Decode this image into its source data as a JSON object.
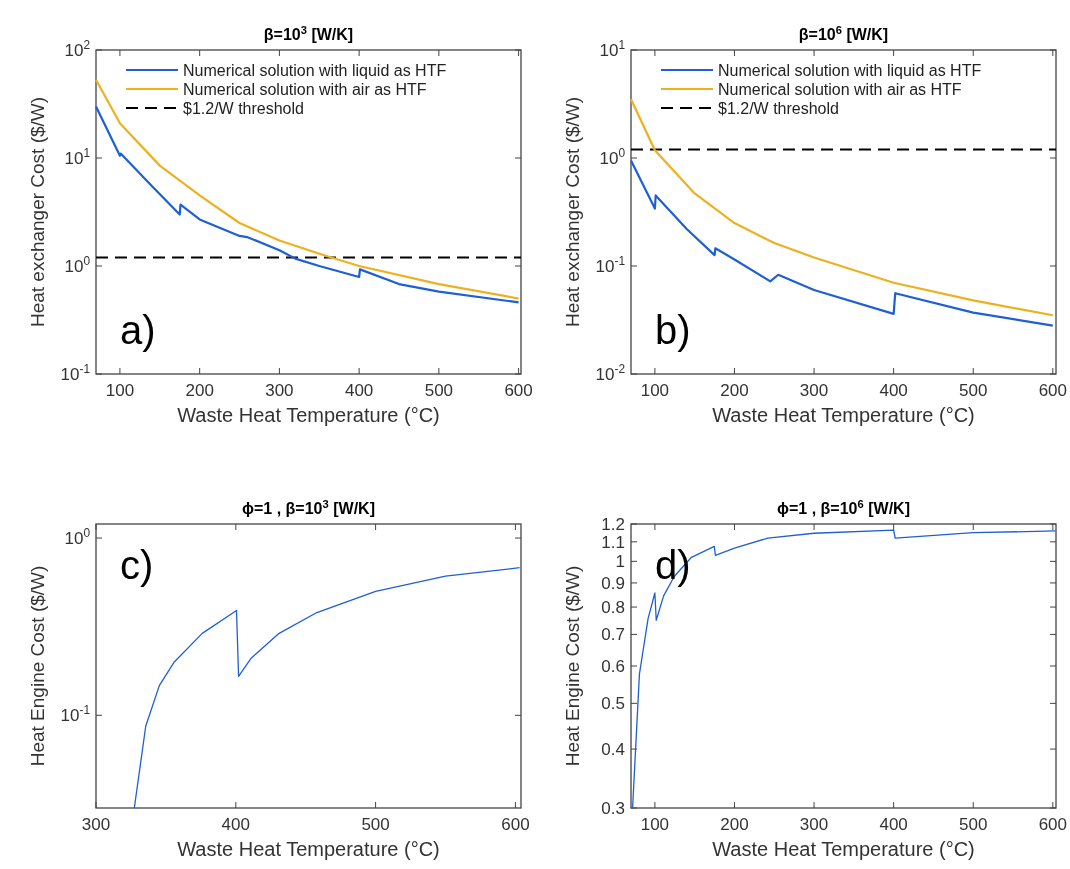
{
  "chart_data": [
    {
      "type": "line",
      "title": "β=10$^{3}$ [W/K]",
      "xlabel": "Waste Heat Temperature (°C)",
      "ylabel": "Heat exchanger Cost ($/W)",
      "annotations": [
        "a)"
      ],
      "log": "y",
      "legend": "top",
      "line_style": "solid",
      "xlim": [
        70,
        603
      ],
      "xticks": [
        100,
        200,
        300,
        400,
        500,
        600
      ],
      "ylim": [
        0.1,
        100
      ],
      "yticks": [
        {
          "value": 0.1,
          "label": "10$^{-1}$"
        },
        {
          "value": 1,
          "label": "10$^{0}$"
        },
        {
          "value": 10,
          "label": "10$^{1}$"
        },
        {
          "value": 100,
          "label": "10$^{2}$"
        }
      ],
      "ref_lines": [
        {
          "axis": "y",
          "value": 1.2,
          "label": "$1.2/W threshold",
          "color": "#000000",
          "line_style": "dashed"
        }
      ],
      "series": [
        {
          "name": "Numerical solution with liquid as HTF",
          "color": "#1f5fd4",
          "x": [
            70,
            100,
            101,
            140,
            175,
            176,
            200,
            250,
            260,
            300,
            320,
            350,
            400,
            401,
            450,
            500,
            600
          ],
          "values": [
            30,
            10.5,
            11,
            5.5,
            3.0,
            3.7,
            2.7,
            1.9,
            1.85,
            1.4,
            1.17,
            1.0,
            0.79,
            0.93,
            0.68,
            0.58,
            0.46
          ]
        },
        {
          "name": "Numerical solution with air as HTF",
          "color": "#edb120",
          "x": [
            70,
            100,
            150,
            200,
            250,
            300,
            360,
            400,
            500,
            600
          ],
          "values": [
            53,
            21,
            8.5,
            4.5,
            2.5,
            1.72,
            1.23,
            1.0,
            0.68,
            0.5
          ]
        }
      ]
    },
    {
      "type": "line",
      "title": "β=10$^{6}$ [W/K]",
      "xlabel": "Waste Heat Temperature (°C)",
      "ylabel": "Heat exchanger Cost ($/W)",
      "annotations": [
        "b)"
      ],
      "log": "y",
      "legend": "top",
      "line_style": "solid",
      "xlim": [
        70,
        604
      ],
      "xticks": [
        100,
        200,
        300,
        400,
        500,
        600
      ],
      "ylim": [
        0.01,
        10
      ],
      "yticks": [
        {
          "value": 0.01,
          "label": "10$^{-2}$"
        },
        {
          "value": 0.1,
          "label": "10$^{-1}$"
        },
        {
          "value": 1,
          "label": "10$^{0}$"
        },
        {
          "value": 10,
          "label": "10$^{1}$"
        }
      ],
      "ref_lines": [
        {
          "axis": "y",
          "value": 1.2,
          "label": "$1.2/W threshold",
          "color": "#000000",
          "line_style": "dashed"
        }
      ],
      "series": [
        {
          "name": "Numerical solution with liquid as HTF",
          "color": "#1f5fd4",
          "x": [
            70,
            100,
            101,
            140,
            175,
            176,
            200,
            245,
            255,
            300,
            400,
            402,
            500,
            600
          ],
          "values": [
            0.95,
            0.34,
            0.45,
            0.22,
            0.126,
            0.146,
            0.115,
            0.072,
            0.083,
            0.06,
            0.036,
            0.056,
            0.037,
            0.028
          ]
        },
        {
          "name": "Numerical solution with air as HTF",
          "color": "#edb120",
          "x": [
            70,
            100,
            150,
            200,
            250,
            300,
            400,
            500,
            600
          ],
          "values": [
            3.5,
            1.18,
            0.47,
            0.25,
            0.163,
            0.12,
            0.07,
            0.048,
            0.035
          ]
        }
      ]
    },
    {
      "type": "line",
      "title": "ϕ=1 , β=10$^{3}$ [W/K]",
      "xlabel": "Waste Heat Temperature (°C)",
      "ylabel": "Heat Engine Cost ($/W)",
      "annotations": [
        "c)"
      ],
      "log": "y",
      "line_style": "solid",
      "xlim": [
        300,
        604
      ],
      "xticks": [
        300,
        400,
        500,
        600
      ],
      "ylim": [
        0.03,
        1.2
      ],
      "yticks": [
        {
          "value": 0.1,
          "label": "10$^{-1}$"
        },
        {
          "value": 1,
          "label": "10$^{0}$"
        }
      ],
      "series": [
        {
          "color": "#1f5fd4",
          "x": [
            327.4,
            335.6,
            345.3,
            356,
            376,
            400.5,
            402,
            411,
            431,
            458,
            500,
            550,
            603
          ],
          "values": [
            0.03,
            0.087,
            0.147,
            0.2,
            0.29,
            0.39,
            0.166,
            0.21,
            0.29,
            0.38,
            0.5,
            0.61,
            0.68
          ]
        }
      ]
    },
    {
      "type": "line",
      "title": "ϕ=1 , β=10$^{6}$ [W/K]",
      "xlabel": "Waste Heat Temperature (°C)",
      "ylabel": "Heat Engine Cost ($/W)",
      "annotations": [
        "d)"
      ],
      "log": "y",
      "line_style": "solid",
      "xlim": [
        70,
        604
      ],
      "xticks": [
        100,
        200,
        300,
        400,
        500,
        600
      ],
      "ylim": [
        0.3,
        1.2
      ],
      "yticks": [
        0.3,
        0.4,
        0.5,
        0.6,
        0.7,
        0.8,
        0.9,
        1,
        1.1,
        1.2
      ],
      "series": [
        {
          "color": "#1f5fd4",
          "x": [
            72,
            80.6,
            91.5,
            100,
            101.7,
            111,
            124.5,
            146,
            174.7,
            176,
            200,
            242,
            300,
            400,
            402,
            500,
            603
          ],
          "values": [
            0.3,
            0.577,
            0.757,
            0.857,
            0.75,
            0.845,
            0.93,
            1.02,
            1.076,
            1.03,
            1.067,
            1.12,
            1.147,
            1.165,
            1.12,
            1.15,
            1.16
          ]
        }
      ]
    }
  ]
}
